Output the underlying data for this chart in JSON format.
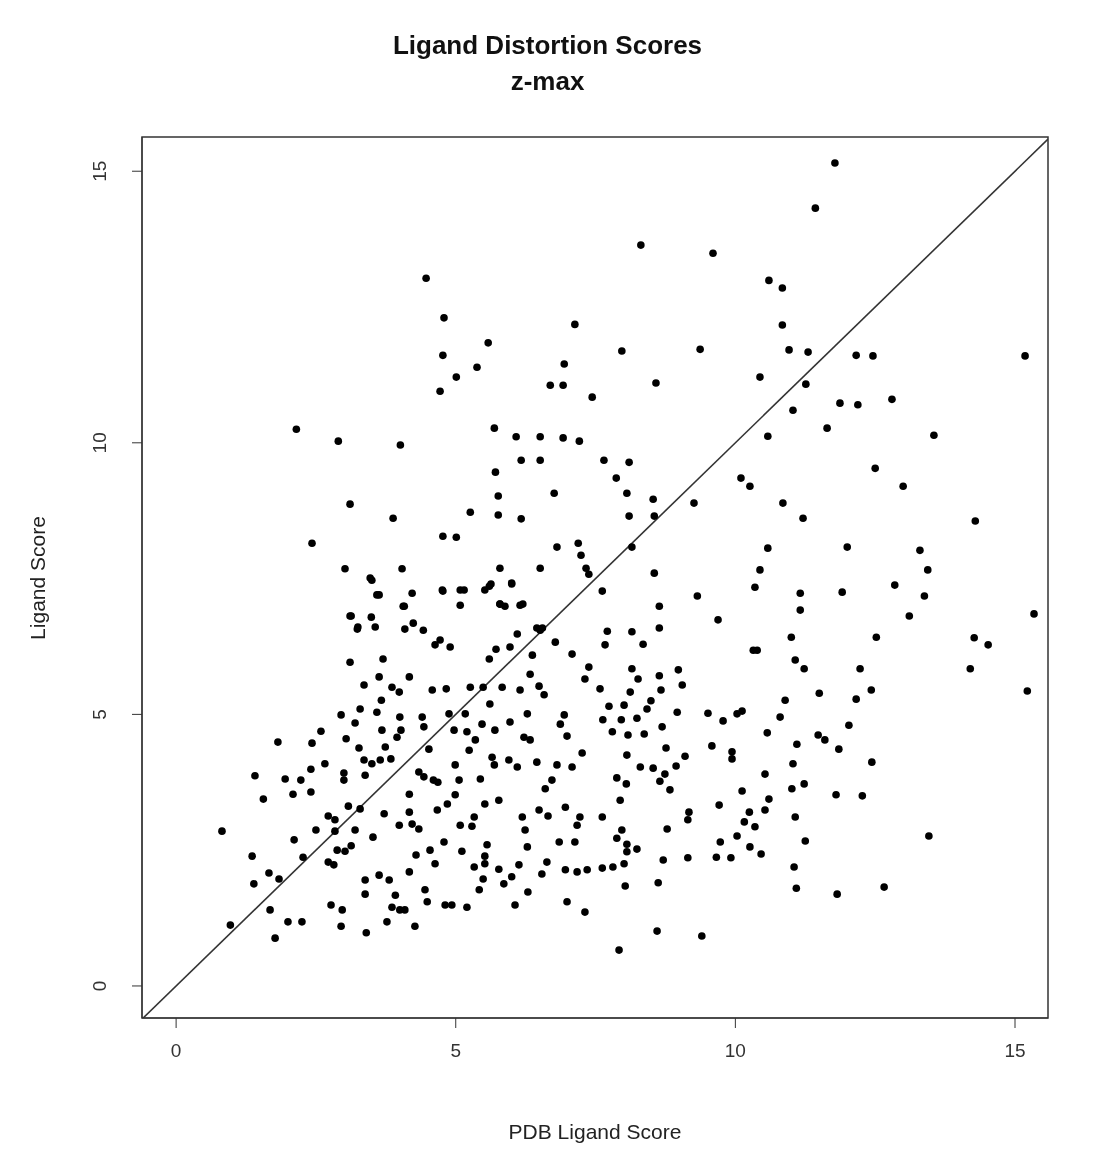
{
  "chart_data": {
    "type": "scatter",
    "title": "Ligand Distortion Scores",
    "subtitle": "z-max",
    "xlabel": "PDB Ligand Score",
    "ylabel": "Ligand Score",
    "xlim": [
      -0.61,
      15.59
    ],
    "ylim": [
      -0.59,
      15.63
    ],
    "xticks": [
      0,
      5,
      10,
      15
    ],
    "yticks": [
      0,
      5,
      10,
      15
    ],
    "series": [
      {
        "marker": "circle",
        "color": "#000000",
        "x": [
          11.78,
          11.43,
          8.31,
          4.47,
          9.6,
          4.79,
          10.6,
          10.84,
          7.13,
          10.84,
          5.58,
          4.77,
          7.97,
          9.37,
          10.96,
          11.3,
          12.16,
          12.46,
          15.18,
          5.38,
          5.01,
          6.94,
          4.72,
          6.69,
          6.92,
          8.58,
          10.44,
          11.26,
          7.44,
          12.8,
          11.87,
          12.19,
          11.03,
          2.15,
          2.9,
          4.01,
          5.69,
          6.08,
          6.51,
          6.92,
          7.21,
          10.58,
          11.64,
          13.55,
          7.65,
          8.1,
          6.17,
          6.51,
          5.71,
          12.5,
          13.0,
          10.1,
          10.26,
          7.87,
          8.06,
          6.76,
          5.76,
          3.11,
          8.53,
          5.26,
          5.76,
          8.1,
          8.55,
          10.85,
          11.21,
          9.26,
          14.29,
          3.88,
          6.17,
          4.77,
          5.01,
          6.81,
          2.43,
          8.15,
          12.0,
          7.19,
          10.58,
          13.3,
          7.24,
          7.33,
          10.44,
          13.44,
          5.79,
          3.02,
          4.04,
          7.38,
          3.47,
          6.51,
          6.0,
          5.6,
          8.55,
          9.32,
          7.62,
          12.85,
          11.16,
          3.59,
          13.38,
          11.91,
          5.08,
          4.77,
          5.79,
          6.15,
          4.06,
          8.64,
          9.69,
          11.16,
          13.11,
          15.34,
          3.11,
          4.24,
          3.24,
          14.27,
          14.52,
          12.52,
          10.32,
          10.39,
          6.45,
          6.55,
          0.82,
          0.97,
          1.36,
          1.39,
          1.41,
          1.56,
          1.66,
          1.68,
          1.77,
          1.82,
          1.84,
          1.95,
          2.0,
          2.09,
          2.11,
          2.23,
          2.25,
          2.27,
          2.41,
          2.43,
          2.41,
          2.5,
          2.59,
          2.66,
          2.72,
          2.72,
          2.77,
          2.82,
          2.84,
          2.84,
          2.88,
          2.95,
          2.95,
          2.97,
          3.0,
          3.0,
          3.02,
          3.04,
          3.08,
          3.11,
          3.13,
          3.13,
          3.2,
          3.2,
          3.25,
          3.27,
          3.29,
          3.29,
          3.36,
          3.36,
          3.38,
          3.38,
          3.38,
          3.4,
          3.49,
          3.5,
          3.5,
          3.52,
          3.56,
          3.59,
          3.63,
          3.63,
          3.63,
          3.65,
          3.67,
          3.68,
          3.7,
          3.72,
          3.74,
          3.77,
          3.81,
          3.84,
          3.86,
          3.86,
          3.92,
          3.95,
          3.99,
          3.99,
          4.0,
          4.0,
          4.02,
          4.08,
          4.09,
          4.09,
          4.17,
          4.17,
          4.17,
          4.17,
          4.22,
          4.22,
          4.27,
          4.29,
          4.34,
          4.34,
          4.4,
          4.42,
          4.43,
          4.43,
          4.45,
          4.49,
          4.52,
          4.54,
          4.58,
          4.6,
          4.63,
          4.63,
          4.67,
          4.68,
          4.72,
          4.76,
          4.79,
          4.81,
          4.83,
          4.85,
          4.88,
          4.9,
          4.93,
          4.97,
          4.99,
          4.99,
          5.06,
          5.08,
          5.08,
          5.11,
          5.15,
          5.17,
          5.2,
          5.2,
          5.24,
          5.26,
          5.29,
          5.33,
          5.33,
          5.35,
          5.42,
          5.44,
          5.47,
          5.49,
          5.49,
          5.52,
          5.52,
          5.52,
          5.52,
          5.56,
          5.6,
          5.61,
          5.63,
          5.65,
          5.69,
          5.7,
          5.72,
          5.77,
          5.77,
          5.79,
          5.83,
          5.86,
          5.88,
          5.95,
          5.97,
          5.97,
          6.0,
          6.0,
          6.06,
          6.1,
          6.1,
          6.13,
          6.15,
          6.19,
          6.2,
          6.22,
          6.24,
          6.28,
          6.28,
          6.29,
          6.33,
          6.33,
          6.37,
          6.45,
          6.49,
          6.49,
          6.51,
          6.54,
          6.58,
          6.6,
          6.63,
          6.65,
          6.72,
          6.78,
          6.81,
          6.85,
          6.87,
          6.94,
          6.96,
          6.96,
          6.99,
          6.99,
          7.08,
          7.08,
          7.13,
          7.17,
          7.17,
          7.22,
          7.26,
          7.31,
          7.31,
          7.35,
          7.38,
          7.71,
          7.67,
          8.15,
          8.35,
          8.64,
          10.35,
          11.0,
          11.07,
          11.23,
          12.23,
          14.2,
          8.15,
          8.26,
          8.64,
          8.98,
          9.05,
          8.67,
          8.12,
          7.58,
          11.5,
          12.43,
          15.22,
          12.16,
          10.89,
          8.01,
          7.74,
          8.49,
          8.42,
          8.96,
          9.51,
          9.78,
          10.03,
          10.12,
          10.8,
          12.03,
          7.63,
          7.96,
          8.24,
          8.69,
          7.8,
          8.08,
          8.37,
          10.57,
          11.48,
          11.6,
          11.85,
          11.1,
          9.58,
          9.94,
          9.94,
          8.06,
          8.76,
          9.1,
          12.44,
          11.03,
          8.3,
          8.53,
          8.94,
          10.53,
          8.74,
          7.88,
          8.65,
          8.05,
          11.23,
          8.83,
          11.01,
          10.12,
          11.8,
          12.27,
          7.94,
          9.71,
          10.6,
          10.53,
          10.25,
          9.17,
          7.62,
          9.15,
          11.07,
          10.16,
          10.35,
          7.97,
          8.78,
          7.88,
          10.03,
          11.25,
          13.46,
          8.06,
          9.73,
          8.24,
          8.06,
          10.26,
          10.46,
          7.62,
          7.81,
          8.01,
          8.71,
          9.15,
          9.66,
          9.92,
          11.05,
          8.03,
          8.62,
          11.09,
          11.82,
          12.66,
          8.6,
          9.4,
          7.92
        ],
        "values": [
          15.15,
          14.32,
          13.64,
          13.03,
          13.49,
          12.3,
          12.99,
          12.85,
          12.18,
          12.17,
          11.84,
          11.61,
          11.69,
          11.72,
          11.71,
          11.67,
          11.61,
          11.6,
          11.6,
          11.39,
          11.21,
          11.45,
          10.95,
          11.06,
          11.06,
          11.1,
          11.21,
          11.08,
          10.84,
          10.8,
          10.73,
          10.7,
          10.6,
          10.25,
          10.03,
          9.96,
          10.27,
          10.11,
          10.11,
          10.09,
          10.03,
          10.12,
          10.27,
          10.14,
          9.68,
          9.64,
          9.68,
          9.68,
          9.46,
          9.53,
          9.2,
          9.35,
          9.2,
          9.35,
          9.07,
          9.07,
          9.02,
          8.87,
          8.96,
          8.72,
          8.67,
          8.65,
          8.65,
          8.89,
          8.61,
          8.89,
          8.56,
          8.61,
          8.6,
          8.28,
          8.26,
          8.08,
          8.15,
          8.08,
          8.08,
          8.15,
          8.06,
          8.02,
          7.93,
          7.69,
          7.66,
          7.66,
          7.69,
          7.68,
          7.68,
          7.58,
          7.51,
          7.69,
          7.42,
          7.36,
          7.6,
          7.18,
          7.27,
          7.38,
          7.23,
          7.2,
          7.18,
          7.25,
          7.29,
          7.27,
          7.03,
          7.01,
          6.99,
          6.99,
          6.74,
          6.92,
          6.81,
          6.85,
          6.81,
          6.68,
          6.57,
          6.41,
          6.28,
          6.42,
          6.18,
          6.18,
          6.59,
          6.59,
          2.85,
          1.12,
          2.39,
          1.88,
          3.87,
          3.44,
          2.08,
          1.4,
          0.88,
          4.49,
          1.97,
          3.81,
          1.18,
          3.53,
          2.69,
          3.79,
          1.18,
          2.37,
          3.57,
          4.47,
          3.99,
          2.87,
          4.69,
          4.09,
          3.13,
          2.28,
          1.49,
          2.23,
          3.06,
          2.85,
          2.5,
          4.99,
          1.1,
          1.4,
          3.92,
          3.79,
          2.48,
          4.55,
          3.31,
          5.96,
          6.81,
          2.58,
          2.87,
          4.84,
          6.61,
          4.38,
          5.1,
          3.26,
          4.16,
          5.54,
          3.88,
          1.95,
          1.69,
          0.98,
          6.79,
          7.47,
          4.09,
          2.74,
          6.61,
          5.04,
          7.2,
          5.69,
          2.04,
          4.16,
          5.26,
          4.71,
          6.02,
          3.17,
          4.4,
          1.18,
          1.95,
          4.18,
          5.5,
          1.45,
          1.67,
          4.58,
          5.41,
          2.96,
          1.4,
          4.95,
          4.71,
          6.99,
          6.57,
          1.4,
          5.69,
          3.53,
          3.2,
          2.1,
          7.23,
          2.98,
          1.1,
          2.41,
          2.89,
          3.94,
          4.95,
          6.55,
          3.85,
          4.77,
          1.77,
          1.55,
          4.36,
          2.5,
          5.45,
          3.79,
          6.28,
          2.25,
          3.24,
          3.75,
          6.37,
          7.29,
          2.65,
          1.49,
          5.47,
          3.35,
          5.01,
          6.24,
          1.49,
          4.71,
          3.52,
          4.07,
          3.79,
          2.96,
          7.01,
          2.48,
          7.29,
          5.01,
          1.45,
          4.68,
          4.34,
          5.5,
          2.94,
          3.11,
          2.19,
          4.53,
          1.77,
          3.81,
          4.82,
          5.5,
          1.97,
          3.35,
          7.29,
          2.25,
          2.39,
          2.6,
          6.02,
          5.19,
          7.4,
          4.21,
          4.07,
          4.71,
          6.2,
          3.42,
          2.15,
          7.03,
          5.5,
          1.88,
          6.99,
          4.16,
          4.86,
          6.24,
          7.4,
          2.01,
          1.49,
          4.03,
          6.48,
          2.23,
          5.45,
          3.11,
          7.03,
          4.58,
          2.87,
          2.56,
          5.01,
          1.73,
          4.53,
          5.74,
          6.09,
          4.12,
          5.52,
          3.24,
          6.55,
          2.06,
          5.36,
          3.63,
          2.28,
          3.13,
          3.79,
          6.33,
          4.07,
          2.65,
          4.82,
          4.99,
          3.29,
          2.14,
          1.55,
          4.6,
          4.03,
          6.11,
          2.65,
          2.1,
          2.96,
          3.11,
          4.29,
          1.36,
          5.65,
          2.14,
          5.87,
          6.53,
          6.28,
          6.52,
          6.29,
          6.59,
          7.34,
          6.42,
          6.0,
          5.84,
          5.84,
          5.84,
          5.84,
          5.65,
          5.71,
          5.82,
          5.54,
          5.45,
          5.41,
          5.47,
          5.39,
          5.45,
          5.43,
          5.28,
          5.26,
          5.17,
          5.15,
          5.25,
          5.1,
          5.04,
          5.02,
          4.88,
          5.01,
          5.06,
          4.95,
          4.8,
          4.9,
          4.9,
          4.93,
          4.77,
          4.68,
          4.62,
          4.64,
          4.66,
          4.62,
          4.53,
          4.36,
          4.45,
          4.42,
          4.31,
          4.18,
          4.25,
          4.38,
          4.23,
          4.12,
          4.09,
          4.03,
          4.01,
          4.05,
          3.9,
          3.9,
          3.83,
          3.77,
          3.72,
          3.72,
          3.61,
          3.63,
          3.59,
          3.52,
          3.5,
          3.42,
          3.33,
          3.44,
          3.24,
          3.2,
          3.2,
          3.11,
          3.06,
          3.11,
          3.02,
          2.93,
          2.87,
          2.89,
          2.72,
          2.76,
          2.67,
          2.76,
          2.61,
          2.65,
          2.52,
          2.47,
          2.56,
          2.43,
          2.17,
          2.19,
          2.25,
          2.32,
          2.36,
          2.37,
          2.36,
          2.19,
          1.84,
          1.9,
          1.8,
          1.69,
          1.82,
          1.01,
          0.92,
          0.66
        ]
      },
      {
        "type": "line",
        "marker": "none",
        "color": "#333333",
        "x": [
          -0.59,
          15.59
        ],
        "values": [
          -0.59,
          15.59
        ]
      }
    ]
  }
}
